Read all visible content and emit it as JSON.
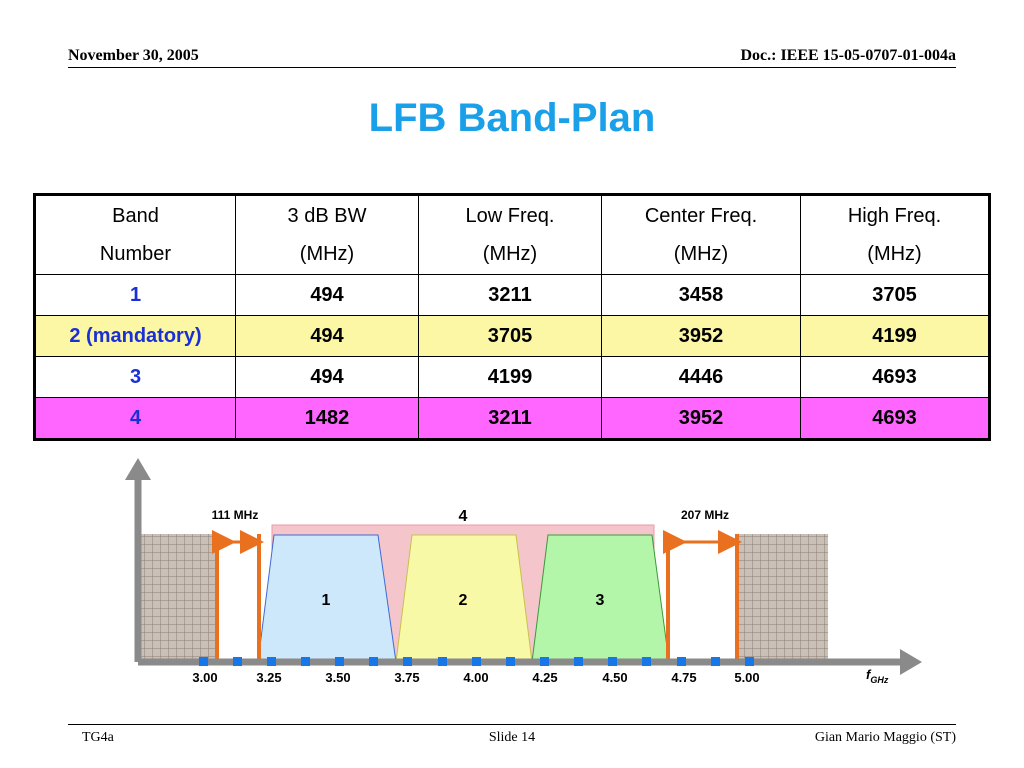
{
  "header": {
    "date": "November 30, 2005",
    "doc": "Doc.: IEEE 15-05-0707-01-004a"
  },
  "title": "LFB Band-Plan",
  "table": {
    "headers": [
      {
        "line1": "Band",
        "line2": "Number"
      },
      {
        "line1": "3 dB BW",
        "line2": "(MHz)"
      },
      {
        "line1": "Low Freq.",
        "line2": "(MHz)"
      },
      {
        "line1": "Center Freq.",
        "line2": "(MHz)"
      },
      {
        "line1": "High Freq.",
        "line2": "(MHz)"
      }
    ],
    "rows": [
      {
        "band": "1",
        "bw": "494",
        "low": "3211",
        "center": "3458",
        "high": "3705",
        "highlight": "#ffffff"
      },
      {
        "band": "2 (mandatory)",
        "bw": "494",
        "low": "3705",
        "center": "3952",
        "high": "4199",
        "highlight": "#fcf7a5"
      },
      {
        "band": "3",
        "bw": "494",
        "low": "4199",
        "center": "4446",
        "high": "4693",
        "highlight": "#ffffff"
      },
      {
        "band": "4",
        "bw": "1482",
        "low": "3211",
        "center": "3952",
        "high": "4693",
        "highlight": "#ff66ff"
      }
    ]
  },
  "figure": {
    "ticks": [
      "3.00",
      "3.25",
      "3.50",
      "3.75",
      "4.00",
      "4.25",
      "4.50",
      "4.75",
      "5.00"
    ],
    "axis_label": "f",
    "axis_label_sub": "GHz",
    "guard_left_label": "111 MHz",
    "guard_right_label": "207 MHz",
    "band_labels": [
      "1",
      "2",
      "3",
      "4"
    ],
    "colors": {
      "band1": "#cde8fb",
      "band2": "#f8f9a6",
      "band3": "#b3f6a9",
      "band4": "#f5c5cc",
      "guard": "#e8701e",
      "tick_marker": "#1877e8",
      "axis": "#8a8a8a"
    }
  },
  "footer": {
    "left": "TG4a",
    "center": "Slide 14",
    "right": "Gian Mario Maggio (ST)"
  }
}
